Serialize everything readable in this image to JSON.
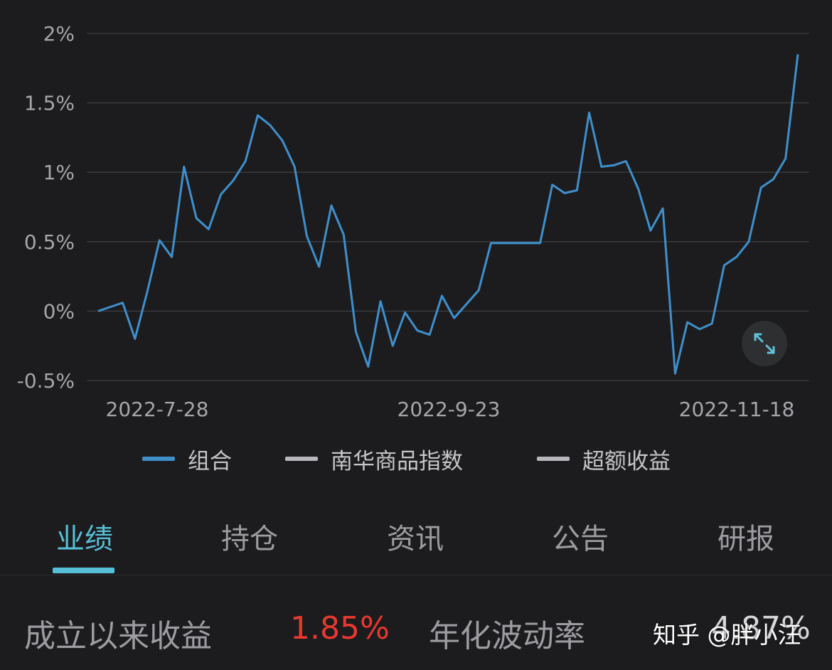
{
  "chart_data": {
    "type": "line",
    "y_ticks": [
      "2%",
      "1.5%",
      "1%",
      "0.5%",
      "0%",
      "-0.5%"
    ],
    "y_values": [
      2,
      1.5,
      1,
      0.5,
      0,
      -0.5
    ],
    "ylim": [
      -0.5,
      2
    ],
    "x_tick_labels": [
      "2022-7-28",
      "2022-9-23",
      "2022-11-18"
    ],
    "series": [
      {
        "name": "组合",
        "color": "#3f8fcb",
        "values": [
          0.0,
          0.03,
          0.06,
          -0.2,
          0.14,
          0.51,
          0.39,
          1.04,
          0.67,
          0.59,
          0.84,
          0.94,
          1.08,
          1.41,
          1.34,
          1.23,
          1.04,
          0.54,
          0.32,
          0.76,
          0.55,
          -0.15,
          -0.4,
          0.07,
          -0.25,
          -0.01,
          -0.14,
          -0.17,
          0.11,
          -0.05,
          0.05,
          0.15,
          0.49,
          0.49,
          0.49,
          0.49,
          0.49,
          0.91,
          0.85,
          0.87,
          1.43,
          1.04,
          1.05,
          1.08,
          0.88,
          0.58,
          0.74,
          -0.45,
          -0.08,
          -0.13,
          -0.09,
          0.33,
          0.39,
          0.5,
          0.89,
          0.95,
          1.1,
          1.85
        ]
      }
    ],
    "grid": true
  },
  "legend": [
    {
      "label": "组合",
      "color": "#3f8fcb"
    },
    {
      "label": "南华商品指数",
      "color": "#b8b8bc"
    },
    {
      "label": "超额收益",
      "color": "#b8b8bc"
    }
  ],
  "expand_icon": "expand-arrows-icon",
  "tabs": [
    {
      "label": "业绩",
      "active": true
    },
    {
      "label": "持仓",
      "active": false
    },
    {
      "label": "资讯",
      "active": false
    },
    {
      "label": "公告",
      "active": false
    },
    {
      "label": "研报",
      "active": false
    }
  ],
  "stats": {
    "since_inception_label": "成立以来收益",
    "since_inception_value": "1.85%",
    "volatility_label": "年化波动率",
    "volatility_value": "4.87%"
  },
  "watermark": "知乎 @胖小汪",
  "colors": {
    "accent": "#56c0d6",
    "positive": "#e8382f",
    "series_line": "#3f8fcb"
  }
}
